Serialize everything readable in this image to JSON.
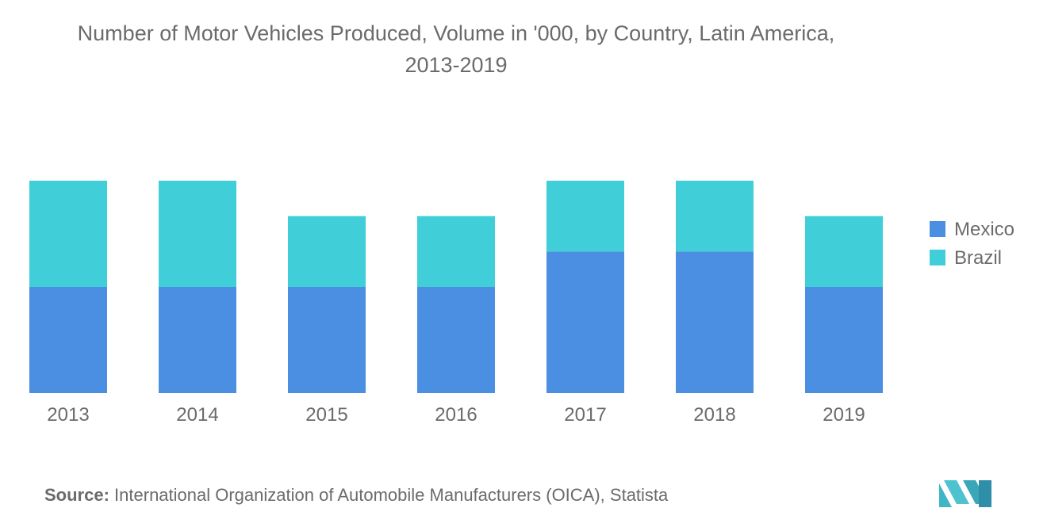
{
  "title_line1": "Number of Motor Vehicles Produced, Volume in '000, by Country, Latin America,",
  "title_line2": "2013-2019",
  "source_label": "Source:",
  "source_text": "International Organization of Automobile Manufacturers (OICA), Statista",
  "logo_name": "mordor-intelligence-logo",
  "colors": {
    "mexico": "#4a8fe2",
    "brazil": "#40cfd9",
    "text": "#6b6b6b",
    "logo": "#3fb6c6"
  },
  "chart_data": {
    "type": "bar",
    "stacked": true,
    "categories": [
      "2013",
      "2014",
      "2015",
      "2016",
      "2017",
      "2018",
      "2019"
    ],
    "series": [
      {
        "name": "Mexico",
        "values": [
          3,
          3,
          3,
          3,
          4,
          4,
          3
        ]
      },
      {
        "name": "Brazil",
        "values": [
          3,
          3,
          2,
          2,
          2,
          2,
          2
        ]
      }
    ],
    "ylim": [
      0,
      6
    ],
    "legend_position": "right",
    "grid": false,
    "xlabel": "",
    "ylabel": ""
  }
}
